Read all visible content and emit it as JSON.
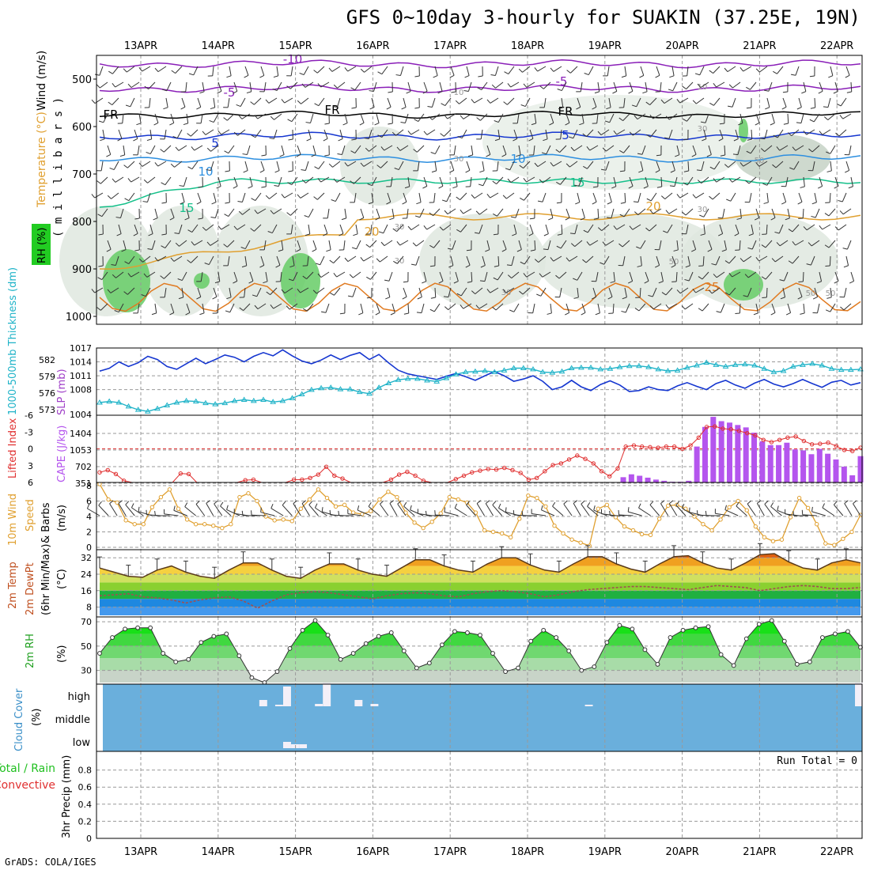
{
  "title": "GFS 0~10day 3-hourly for SUAKIN (37.25E, 19N)",
  "footer": "GrADS: COLA/IGES",
  "dates": [
    "13APR",
    "14APR",
    "15APR",
    "16APR",
    "17APR",
    "18APR",
    "19APR",
    "20APR",
    "21APR",
    "22APR"
  ],
  "colors": {
    "purple": "#8a1fb8",
    "blue": "#1536d0",
    "cyan": "#1fb3c8",
    "teal": "#15c08a",
    "orange": "#e0a030",
    "red": "#e03030",
    "green": "#22cc22",
    "cloud": "#6aafdc",
    "lightblue": "#2d8fe0"
  },
  "panels": {
    "profile": {
      "ylabel_wind": "Wind (m/s)",
      "ylabel_temp": "Temperature (°C)",
      "ylabel_rh": "RH (%)",
      "ylabel_mb": "( m i l l i b a r s )",
      "yticks": [
        "500",
        "600",
        "700",
        "800",
        "900",
        "1000"
      ],
      "contour_labels": [
        "-10",
        "-5",
        "-5",
        "FR",
        "FR",
        "FR",
        "5",
        "5",
        "10",
        "10",
        "15",
        "15",
        "20",
        "20",
        "25",
        "10",
        "10",
        "30",
        "30",
        "50",
        "50",
        "30",
        "30",
        "30",
        "30",
        "50",
        "50"
      ]
    },
    "slp": {
      "ylabel_thick": "1000-500mb Thickness (dm)",
      "ylabel_slp": "SLP (mb)",
      "left_ticks": [
        "582",
        "579",
        "576",
        "573"
      ],
      "right_ticks": [
        "1017",
        "1014",
        "1011",
        "1008"
      ]
    },
    "cape": {
      "ylabel_li": "Lifted Index",
      "ylabel_cape": "CAPE (J/kg)",
      "left_ticks": [
        "-6",
        "-3",
        "0",
        "3",
        "6"
      ],
      "right_ticks": [
        "1404",
        "1053",
        "702",
        "351"
      ]
    },
    "wind10": {
      "ylabel1": "10m Wind",
      "ylabel2": "Speed",
      "ylabel3": "& Barbs",
      "ylabel4": "(m/s)",
      "ticks": [
        "8",
        "6",
        "4",
        "2",
        "0"
      ]
    },
    "temp2m": {
      "ylabel1": "2m Temp",
      "ylabel2": "2m DewPt",
      "ylabel3": "(6hr Min/Max)",
      "ylabel4": "(°C)",
      "ticks": [
        "32",
        "24",
        "16",
        "8"
      ]
    },
    "rh2m": {
      "ylabel1": "2m RH",
      "ylabel2": "(%)",
      "ticks": [
        "70",
        "50",
        "30"
      ]
    },
    "cloud": {
      "ylabel1": "Cloud Cover",
      "ylabel2": "(%)",
      "levels": [
        "high",
        "middle",
        "low"
      ]
    },
    "precip": {
      "ylabel_total": "Total / Rain",
      "ylabel_conv": "Convective",
      "ylabel_mm": "3hr Precip (mm)",
      "ticks": [
        "0.8",
        "0.6",
        "0.4",
        "0.2",
        "0"
      ],
      "run_total": "Run Total = 0"
    }
  },
  "chart_data": [
    {
      "type": "line",
      "name": "slp_thickness",
      "series": [
        {
          "name": "SLP (mb)",
          "color": "#1536d0",
          "values": [
            1012.0,
            1012.6,
            1014.0,
            1013.0,
            1013.8,
            1015.2,
            1014.5,
            1013.0,
            1012.4,
            1013.6,
            1014.8,
            1013.6,
            1014.5,
            1015.5,
            1015.0,
            1014.0,
            1015.2,
            1016.0,
            1015.3,
            1016.6,
            1015.3,
            1014.2,
            1013.6,
            1014.4,
            1015.5,
            1014.5,
            1015.4,
            1016.0,
            1014.5,
            1015.6,
            1013.8,
            1012.2,
            1011.4,
            1011.0,
            1010.6,
            1010.2,
            1010.9,
            1011.5,
            1010.8,
            1010.0,
            1011.0,
            1011.9,
            1011.0,
            1009.8,
            1010.3,
            1011.0,
            1009.8,
            1008.0,
            1008.6,
            1010.0,
            1008.6,
            1007.8,
            1009.1,
            1009.9,
            1009.0,
            1007.6,
            1007.8,
            1008.6,
            1008.0,
            1007.8,
            1008.8,
            1009.5,
            1008.7,
            1008.0,
            1009.3,
            1010.0,
            1009.0,
            1008.3,
            1009.4,
            1010.2,
            1009.2,
            1008.6,
            1009.3,
            1010.2,
            1009.3,
            1008.5,
            1009.6,
            1010.0,
            1009.0,
            1009.5
          ]
        },
        {
          "name": "1000-500mb Thickness (dm)",
          "color": "#1fb3c8",
          "values": [
            574.3,
            574.5,
            574.3,
            573.6,
            573.0,
            572.7,
            573.2,
            573.8,
            574.3,
            574.6,
            574.5,
            574.2,
            574.0,
            574.2,
            574.6,
            574.8,
            574.6,
            574.8,
            574.4,
            574.6,
            575.1,
            575.8,
            576.6,
            576.9,
            577.0,
            576.7,
            576.7,
            576.2,
            575.9,
            577.0,
            577.8,
            578.4,
            578.6,
            578.6,
            578.3,
            578.1,
            578.7,
            579.4,
            579.8,
            579.9,
            580.0,
            579.8,
            580.1,
            580.5,
            580.5,
            580.3,
            579.8,
            579.7,
            579.9,
            580.5,
            580.6,
            580.6,
            580.3,
            580.4,
            580.7,
            580.9,
            580.9,
            580.7,
            580.3,
            580.0,
            580.1,
            580.6,
            581.0,
            581.5,
            581.1,
            580.8,
            581.1,
            581.2,
            581.0,
            580.4,
            579.8,
            580.0,
            580.8,
            581.1,
            581.3,
            581.0,
            580.4,
            580.2,
            580.2,
            580.3
          ]
        }
      ]
    },
    {
      "type": "bar",
      "name": "cape",
      "values": [
        0,
        0,
        0,
        0,
        0,
        0,
        0,
        0,
        0,
        0,
        0,
        0,
        0,
        0,
        0,
        0,
        0,
        0,
        0,
        0,
        0,
        0,
        0,
        0,
        0,
        0,
        0,
        0,
        0,
        0,
        0,
        0,
        0,
        0,
        0,
        0,
        0,
        0,
        0,
        0,
        0,
        0,
        0,
        0,
        0,
        0,
        0,
        0,
        0,
        0,
        0,
        0,
        0,
        0,
        0,
        0,
        0,
        0,
        0,
        0,
        0,
        0,
        0,
        0,
        110,
        170,
        140,
        100,
        60,
        35,
        15,
        15,
        35,
        750,
        1160,
        1370,
        1280,
        1250,
        1200,
        1150,
        1040,
        860,
        780,
        780,
        830,
        690,
        670,
        590,
        700,
        600,
        480,
        330,
        150,
        550
      ]
    },
    {
      "type": "line",
      "name": "lifted_index",
      "values": [
        4.2,
        3.8,
        4.5,
        5.7,
        6.2,
        6.2,
        6.2,
        6.2,
        6.2,
        6.2,
        4.4,
        4.5,
        6.2,
        6.2,
        6.2,
        6.2,
        6.2,
        6.2,
        5.6,
        5.5,
        6.2,
        6.2,
        6.2,
        6.2,
        5.5,
        5.5,
        5.2,
        4.6,
        3.2,
        4.8,
        5.3,
        6.2,
        6.2,
        6.2,
        6.2,
        6.2,
        5.5,
        4.6,
        4.1,
        4.8,
        5.7,
        6.2,
        6.2,
        6.2,
        5.4,
        4.8,
        4.2,
        3.9,
        3.6,
        3.7,
        3.4,
        3.8,
        4.3,
        5.5,
        5.2,
        4.0,
        2.9,
        2.6,
        1.9,
        1.2,
        1.8,
        2.6,
        4.0,
        4.9,
        3.5,
        -0.4,
        -0.6,
        -0.4,
        -0.3,
        -0.2,
        -0.4,
        -0.4,
        0.0,
        -0.6,
        -2.0,
        -3.9,
        -4.0,
        -3.6,
        -3.5,
        -3.2,
        -2.8,
        -2.4,
        -1.6,
        -1.2,
        -1.6,
        -2.0,
        -2.2,
        -1.4,
        -0.8,
        -0.9,
        -1.1,
        -0.5,
        0.2,
        0.4,
        -0.2
      ]
    },
    {
      "type": "line",
      "name": "10m_wind_speed",
      "values": [
        8.2,
        6.2,
        5.8,
        3.5,
        3.0,
        3.0,
        5.2,
        6.5,
        7.5,
        5.0,
        3.6,
        3.0,
        3.0,
        2.8,
        2.5,
        3.0,
        6.5,
        7.0,
        6.0,
        4.0,
        3.5,
        3.6,
        3.4,
        5.0,
        6.2,
        7.5,
        6.4,
        5.3,
        5.5,
        4.5,
        4.3,
        4.7,
        6.2,
        7.2,
        6.5,
        4.5,
        3.2,
        2.5,
        3.3,
        4.4,
        6.5,
        6.2,
        5.8,
        4.5,
        2.2,
        2.0,
        1.8,
        1.3,
        3.7,
        6.7,
        6.4,
        5.3,
        2.8,
        1.8,
        1.0,
        0.6,
        0.2,
        5.0,
        5.5,
        3.9,
        2.7,
        2.2,
        1.7,
        1.6,
        3.7,
        5.4,
        5.5,
        5.0,
        4.0,
        3.0,
        2.2,
        3.6,
        5.2,
        6.0,
        4.8,
        2.7,
        1.3,
        0.8,
        1.0,
        3.9,
        6.4,
        5.1,
        3.0,
        0.5,
        0.3,
        1.1,
        2.0,
        4.2
      ]
    },
    {
      "type": "area",
      "name": "2m_temp",
      "values": [
        27.0,
        25.0,
        23.0,
        22.5,
        26.0,
        28.0,
        25.0,
        23.0,
        22.0,
        26.0,
        29.5,
        29.5,
        26.0,
        23.0,
        22.0,
        26.0,
        29.0,
        29.0,
        26.0,
        24.0,
        23.0,
        27.0,
        31.0,
        31.0,
        28.0,
        26.0,
        25.0,
        29.0,
        32.0,
        32.0,
        28.5,
        26.0,
        25.0,
        29.0,
        32.5,
        32.5,
        29.0,
        26.5,
        25.0,
        29.0,
        32.5,
        33.0,
        29.5,
        27.0,
        26.0,
        29.5,
        33.5,
        34.0,
        30.0,
        27.0,
        26.0,
        29.5,
        31.0,
        29.5
      ]
    },
    {
      "type": "line",
      "name": "2m_dewpoint",
      "values": [
        13.5,
        14.0,
        14.5,
        13.0,
        12.5,
        11.5,
        10.0,
        11.5,
        12.5,
        13.0,
        11.0,
        7.5,
        11.0,
        14.0,
        15.0,
        15.5,
        15.0,
        14.0,
        13.0,
        12.0,
        13.5,
        14.5,
        15.0,
        14.5,
        13.5,
        13.0,
        14.5,
        15.5,
        16.0,
        15.5,
        14.5,
        13.0,
        14.0,
        15.5,
        16.5,
        17.0,
        17.5,
        18.0,
        18.0,
        17.5,
        17.0,
        16.5,
        17.5,
        18.5,
        18.0,
        17.5,
        16.0,
        17.0,
        18.0,
        18.5,
        18.0,
        17.0,
        17.0,
        17.5
      ]
    },
    {
      "type": "area",
      "name": "2m_rh",
      "values": [
        44,
        57,
        64,
        65,
        65,
        44,
        37,
        39,
        53,
        58,
        60,
        42,
        24,
        20,
        29,
        48,
        63,
        71,
        59,
        39,
        44,
        52,
        58,
        61,
        46,
        32,
        36,
        51,
        62,
        61,
        59,
        44,
        29,
        32,
        54,
        63,
        57,
        46,
        30,
        33,
        53,
        67,
        64,
        47,
        35,
        57,
        63,
        65,
        66,
        43,
        34,
        56,
        68,
        71,
        54,
        35,
        37,
        57,
        60,
        62,
        49
      ]
    },
    {
      "type": "bar",
      "name": "cloud_cover",
      "levels": [
        "high",
        "middle",
        "low"
      ],
      "series": [
        {
          "name": "high",
          "values": [
            0,
            0,
            0,
            0,
            0,
            0,
            0,
            0,
            0,
            0,
            0,
            0,
            0,
            0,
            0,
            0,
            0,
            0,
            0,
            0,
            8,
            0,
            2,
            25,
            0,
            0,
            0,
            3,
            30,
            0,
            0,
            0,
            8,
            0,
            3,
            0,
            0,
            0,
            0,
            0,
            0,
            0,
            0,
            0,
            0,
            0,
            0,
            0,
            0,
            0,
            0,
            0,
            0,
            0,
            0,
            0,
            0,
            0,
            0,
            0,
            0,
            2,
            0,
            0,
            0,
            0,
            0,
            0,
            0,
            0,
            0,
            0,
            0,
            0,
            0,
            0,
            0,
            0,
            0,
            0,
            0,
            0,
            0,
            0,
            0,
            0,
            0,
            0,
            0,
            0,
            0,
            0,
            0,
            0,
            0,
            30
          ]
        },
        {
          "name": "low",
          "values": [
            0,
            0,
            0,
            0,
            0,
            0,
            0,
            0,
            0,
            0,
            0,
            0,
            0,
            0,
            0,
            0,
            0,
            0,
            0,
            0,
            0,
            0,
            0,
            8,
            5,
            5,
            0,
            0,
            0,
            0,
            0,
            0,
            0,
            0,
            0,
            0,
            0,
            0,
            0,
            0,
            0,
            0,
            0,
            0,
            0,
            0,
            0,
            0,
            0,
            0,
            0,
            0,
            0,
            0,
            0,
            0,
            0,
            0,
            0,
            0,
            0,
            0,
            0,
            0,
            0,
            0,
            0,
            0,
            0,
            0,
            0,
            0,
            0,
            0,
            0,
            0,
            0,
            0,
            0,
            0,
            0,
            0,
            0,
            0,
            0,
            0,
            0,
            0,
            0,
            0,
            0,
            0,
            0,
            0,
            0,
            0
          ]
        }
      ]
    },
    {
      "type": "bar",
      "name": "3hr_precip",
      "values": [],
      "ylim": [
        0,
        1
      ]
    }
  ]
}
